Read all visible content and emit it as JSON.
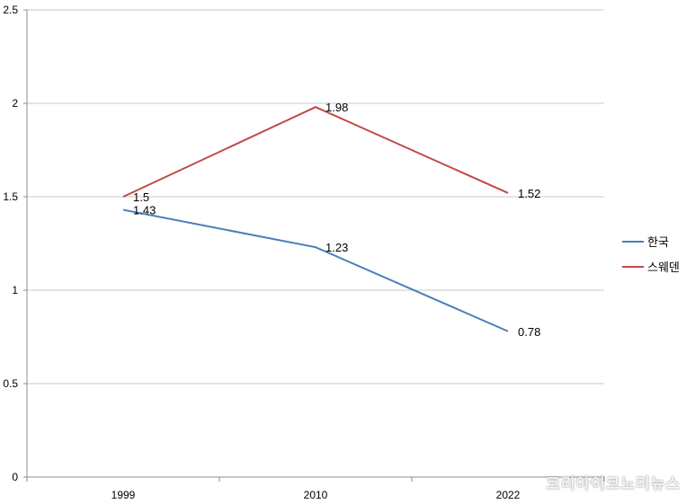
{
  "chart_data": {
    "type": "line",
    "categories": [
      "1999",
      "2010",
      "2022"
    ],
    "series": [
      {
        "name": "한국",
        "values": [
          1.43,
          1.23,
          0.78
        ],
        "labels": [
          "1.43",
          "1.23",
          "0.78"
        ],
        "color": "#4a7ebb"
      },
      {
        "name": "스웨덴",
        "values": [
          1.5,
          1.98,
          1.52
        ],
        "labels": [
          "1.5",
          "1.98",
          "1.52"
        ],
        "color": "#be4b48"
      }
    ],
    "ylim": [
      0,
      2.5
    ],
    "yticks": [
      0,
      0.5,
      1,
      1.5,
      2,
      2.5
    ],
    "ytick_labels": [
      "0",
      "0.5",
      "1",
      "1.5",
      "2",
      "2.5"
    ],
    "grid": true,
    "legend": "right",
    "title": "",
    "xlabel": "",
    "ylabel": ""
  },
  "watermark": "코리아이코노미뉴스"
}
